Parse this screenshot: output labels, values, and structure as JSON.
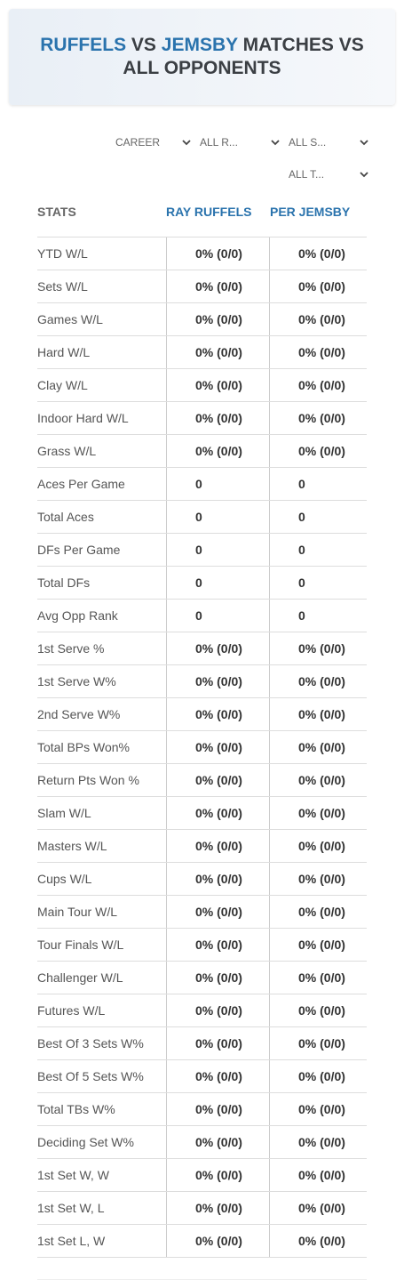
{
  "header": {
    "title_parts": [
      "RUFFELS",
      "VS",
      "JEMSBY",
      "MATCHES VS ALL OPPONENTS"
    ]
  },
  "filters": [
    "CAREER",
    "ALL R...",
    "ALL S...",
    "ALL T..."
  ],
  "table": {
    "columns": [
      "STATS",
      "RAY RUFFELS",
      "PER JEMSBY"
    ],
    "rows": [
      [
        "YTD W/L",
        "0% (0/0)",
        "0% (0/0)"
      ],
      [
        "Sets W/L",
        "0% (0/0)",
        "0% (0/0)"
      ],
      [
        "Games W/L",
        "0% (0/0)",
        "0% (0/0)"
      ],
      [
        "Hard W/L",
        "0% (0/0)",
        "0% (0/0)"
      ],
      [
        "Clay W/L",
        "0% (0/0)",
        "0% (0/0)"
      ],
      [
        "Indoor Hard W/L",
        "0% (0/0)",
        "0% (0/0)"
      ],
      [
        "Grass W/L",
        "0% (0/0)",
        "0% (0/0)"
      ],
      [
        "Aces Per Game",
        "0",
        "0"
      ],
      [
        "Total Aces",
        "0",
        "0"
      ],
      [
        "DFs Per Game",
        "0",
        "0"
      ],
      [
        "Total DFs",
        "0",
        "0"
      ],
      [
        "Avg Opp Rank",
        "0",
        "0"
      ],
      [
        "1st Serve %",
        "0% (0/0)",
        "0% (0/0)"
      ],
      [
        "1st Serve W%",
        "0% (0/0)",
        "0% (0/0)"
      ],
      [
        "2nd Serve W%",
        "0% (0/0)",
        "0% (0/0)"
      ],
      [
        "Total BPs Won%",
        "0% (0/0)",
        "0% (0/0)"
      ],
      [
        "Return Pts Won %",
        "0% (0/0)",
        "0% (0/0)"
      ],
      [
        "Slam W/L",
        "0% (0/0)",
        "0% (0/0)"
      ],
      [
        "Masters W/L",
        "0% (0/0)",
        "0% (0/0)"
      ],
      [
        "Cups W/L",
        "0% (0/0)",
        "0% (0/0)"
      ],
      [
        "Main Tour W/L",
        "0% (0/0)",
        "0% (0/0)"
      ],
      [
        "Tour Finals W/L",
        "0% (0/0)",
        "0% (0/0)"
      ],
      [
        "Challenger W/L",
        "0% (0/0)",
        "0% (0/0)"
      ],
      [
        "Futures W/L",
        "0% (0/0)",
        "0% (0/0)"
      ],
      [
        "Best Of 3 Sets W%",
        "0% (0/0)",
        "0% (0/0)"
      ],
      [
        "Best Of 5 Sets W%",
        "0% (0/0)",
        "0% (0/0)"
      ],
      [
        "Total TBs W%",
        "0% (0/0)",
        "0% (0/0)"
      ],
      [
        "Deciding Set W%",
        "0% (0/0)",
        "0% (0/0)"
      ],
      [
        "1st Set W, W",
        "0% (0/0)",
        "0% (0/0)"
      ],
      [
        "1st Set W, L",
        "0% (0/0)",
        "0% (0/0)"
      ],
      [
        "1st Set L, W",
        "0% (0/0)",
        "0% (0/0)"
      ]
    ]
  }
}
